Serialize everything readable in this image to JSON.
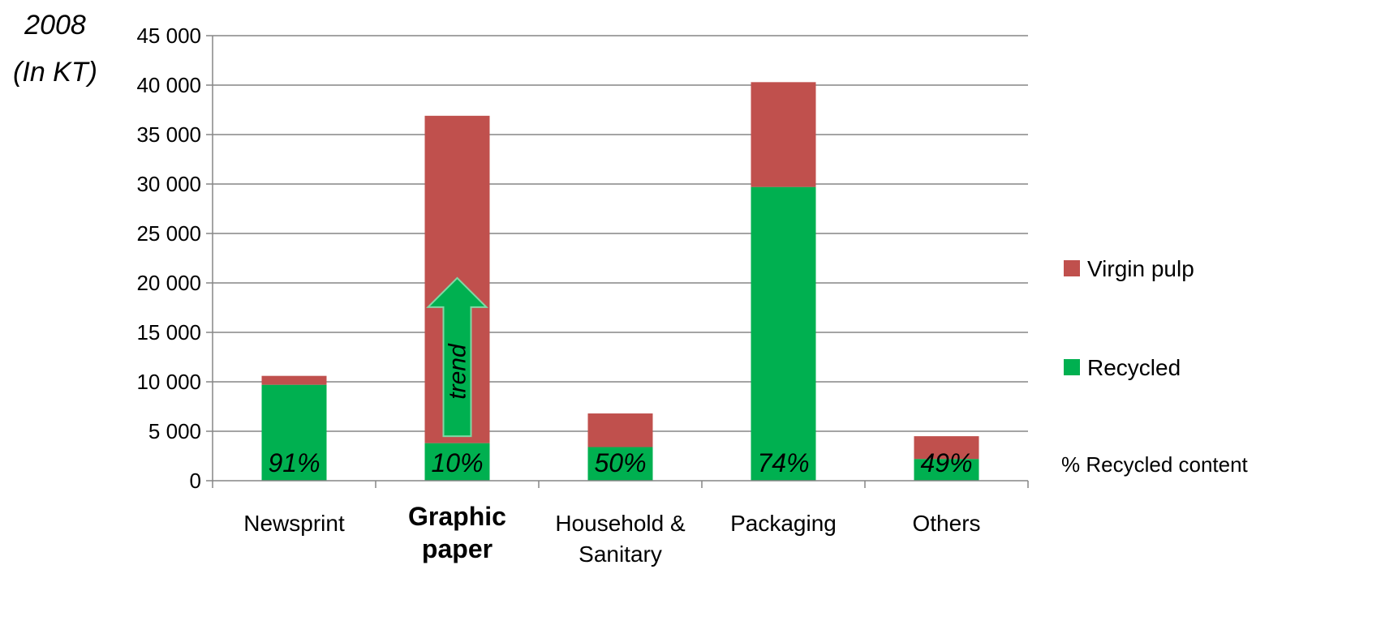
{
  "chart_data": {
    "type": "bar",
    "stacked": true,
    "title": "",
    "unit_label_line1": "2008",
    "unit_label_line2": "(In KT)",
    "xlabel": "",
    "ylabel": "",
    "ylim": [
      0,
      45000
    ],
    "yticks": [
      0,
      5000,
      10000,
      15000,
      20000,
      25000,
      30000,
      35000,
      40000,
      45000
    ],
    "ytick_labels": [
      "0",
      "5 000",
      "10 000",
      "15 000",
      "20 000",
      "25 000",
      "30 000",
      "35 000",
      "40 000",
      "45 000"
    ],
    "grid": true,
    "legend_position": "right",
    "categories": [
      {
        "lines": [
          "Newsprint"
        ],
        "bold": false
      },
      {
        "lines": [
          "Graphic",
          "paper"
        ],
        "bold": true
      },
      {
        "lines": [
          "Household &",
          "Sanitary"
        ],
        "bold": false
      },
      {
        "lines": [
          "Packaging"
        ],
        "bold": false
      },
      {
        "lines": [
          "Others"
        ],
        "bold": false
      }
    ],
    "series": [
      {
        "name": "Recycled",
        "color": "#00b050",
        "values": [
          9700,
          3800,
          3400,
          29700,
          2200
        ]
      },
      {
        "name": "Virgin pulp",
        "color": "#c0504d",
        "values": [
          900,
          33100,
          3400,
          10600,
          2300
        ]
      }
    ],
    "recycled_content_label": "% Recycled content",
    "recycled_content": [
      "91%",
      "10%",
      "50%",
      "74%",
      "49%"
    ],
    "annotation": {
      "text": "trend",
      "category_index": 1,
      "from_value": 4500,
      "to_value": 20500,
      "color": "#00b050"
    }
  }
}
